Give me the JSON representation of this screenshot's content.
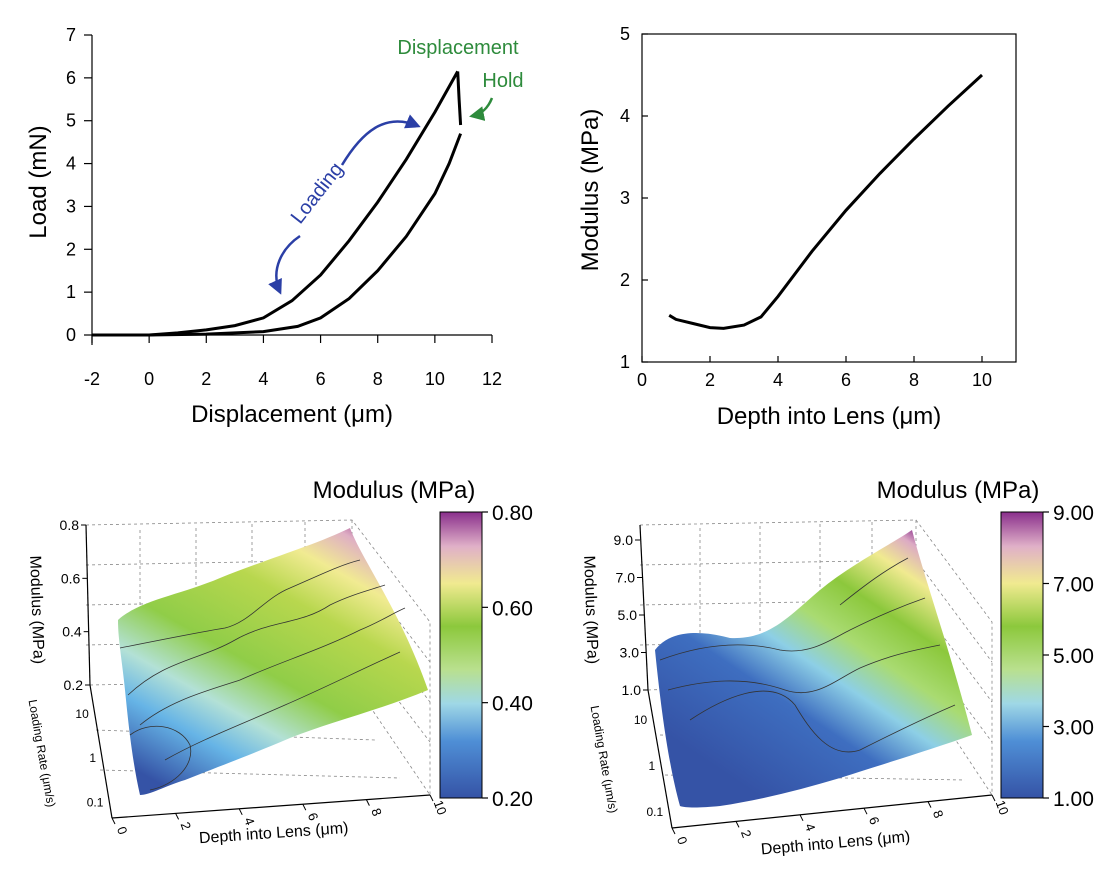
{
  "chart_data": [
    {
      "type": "line",
      "xlabel": "Displacement (μm)",
      "ylabel": "Load (mN)",
      "xlim": [
        -2,
        12
      ],
      "ylim": [
        0,
        7
      ],
      "xticks": [
        "-2",
        "0",
        "2",
        "4",
        "6",
        "8",
        "10",
        "12"
      ],
      "yticks": [
        "0",
        "1",
        "2",
        "3",
        "4",
        "5",
        "6",
        "7"
      ],
      "series": [
        {
          "role": "loading",
          "x": [
            -2,
            0,
            1,
            2,
            3,
            4,
            5,
            6,
            7,
            8,
            9,
            10,
            10.8
          ],
          "y": [
            0,
            0,
            0.05,
            0.12,
            0.22,
            0.4,
            0.8,
            1.4,
            2.2,
            3.1,
            4.1,
            5.2,
            6.15
          ]
        },
        {
          "role": "hold",
          "x": [
            10.8,
            10.85,
            10.9
          ],
          "y": [
            6.15,
            5.5,
            4.9
          ]
        },
        {
          "role": "unloading",
          "x": [
            10.9,
            10.5,
            10,
            9,
            8,
            7,
            6,
            5.2,
            4,
            2,
            0,
            -2
          ],
          "y": [
            4.7,
            4.0,
            3.3,
            2.3,
            1.5,
            0.85,
            0.4,
            0.2,
            0.08,
            0.02,
            0,
            0
          ]
        }
      ],
      "annotations": [
        {
          "text": "Loading",
          "color": "#2b3fa6"
        },
        {
          "text": "Displacement",
          "color": "#2e8b3c"
        },
        {
          "text": "Hold",
          "color": "#2e8b3c"
        }
      ]
    },
    {
      "type": "line",
      "xlabel": "Depth into Lens (μm)",
      "ylabel": "Modulus (MPa)",
      "xlim": [
        0,
        11
      ],
      "ylim": [
        1,
        5
      ],
      "xticks": [
        "0",
        "2",
        "4",
        "6",
        "8",
        "10"
      ],
      "yticks": [
        "1",
        "2",
        "3",
        "4",
        "5"
      ],
      "series": [
        {
          "x": [
            0.8,
            1,
            1.5,
            2,
            2.4,
            3,
            3.5,
            4,
            5,
            6,
            7,
            8,
            9,
            10
          ],
          "y": [
            1.57,
            1.52,
            1.47,
            1.42,
            1.41,
            1.45,
            1.55,
            1.8,
            2.35,
            2.85,
            3.3,
            3.72,
            4.12,
            4.5
          ]
        }
      ]
    },
    {
      "type": "surface3d",
      "title": "Modulus (MPa)",
      "xlabel": "Depth into Lens (μm)",
      "ylabel": "Loading Rate (μm/s)",
      "zlabel": "Modulus (MPa)",
      "xticks": [
        "0",
        "2",
        "4",
        "6",
        "8",
        "10"
      ],
      "yticks": [
        "0.1",
        "1",
        "10"
      ],
      "zticks": [
        "0.2",
        "0.4",
        "0.6",
        "0.8"
      ],
      "colorbar": {
        "ticks": [
          "0.20",
          "0.40",
          "0.60",
          "0.80"
        ]
      },
      "surface": {
        "depth": [
          0,
          10
        ],
        "loading_rate": [
          0.1,
          10
        ],
        "modulus_range": [
          0.2,
          0.8
        ]
      }
    },
    {
      "type": "surface3d",
      "title": "Modulus (MPa)",
      "xlabel": "Depth into Lens (μm)",
      "ylabel": "Loading Rate (μm/s)",
      "zlabel": "Modulus (MPa)",
      "xticks": [
        "0",
        "2",
        "4",
        "6",
        "8",
        "10"
      ],
      "yticks": [
        "0.1",
        "1",
        "10"
      ],
      "zticks": [
        "1.0",
        "3.0",
        "5.0",
        "7.0",
        "9.0"
      ],
      "colorbar": {
        "ticks": [
          "1.00",
          "3.00",
          "5.00",
          "7.00",
          "9.00"
        ]
      },
      "surface": {
        "depth": [
          0,
          10
        ],
        "loading_rate": [
          0.1,
          10
        ],
        "modulus_range": [
          1.0,
          9.0
        ]
      }
    }
  ],
  "colors": {
    "curve": "#000000",
    "loading_arrow": "#2b3fa6",
    "hold_arrow": "#2e8b3c",
    "colormap": [
      "#3a52a8",
      "#59a9e0",
      "#b6e0e8",
      "#a8d44c",
      "#f3ea8e",
      "#d9a8c0",
      "#8a3a8a"
    ]
  }
}
